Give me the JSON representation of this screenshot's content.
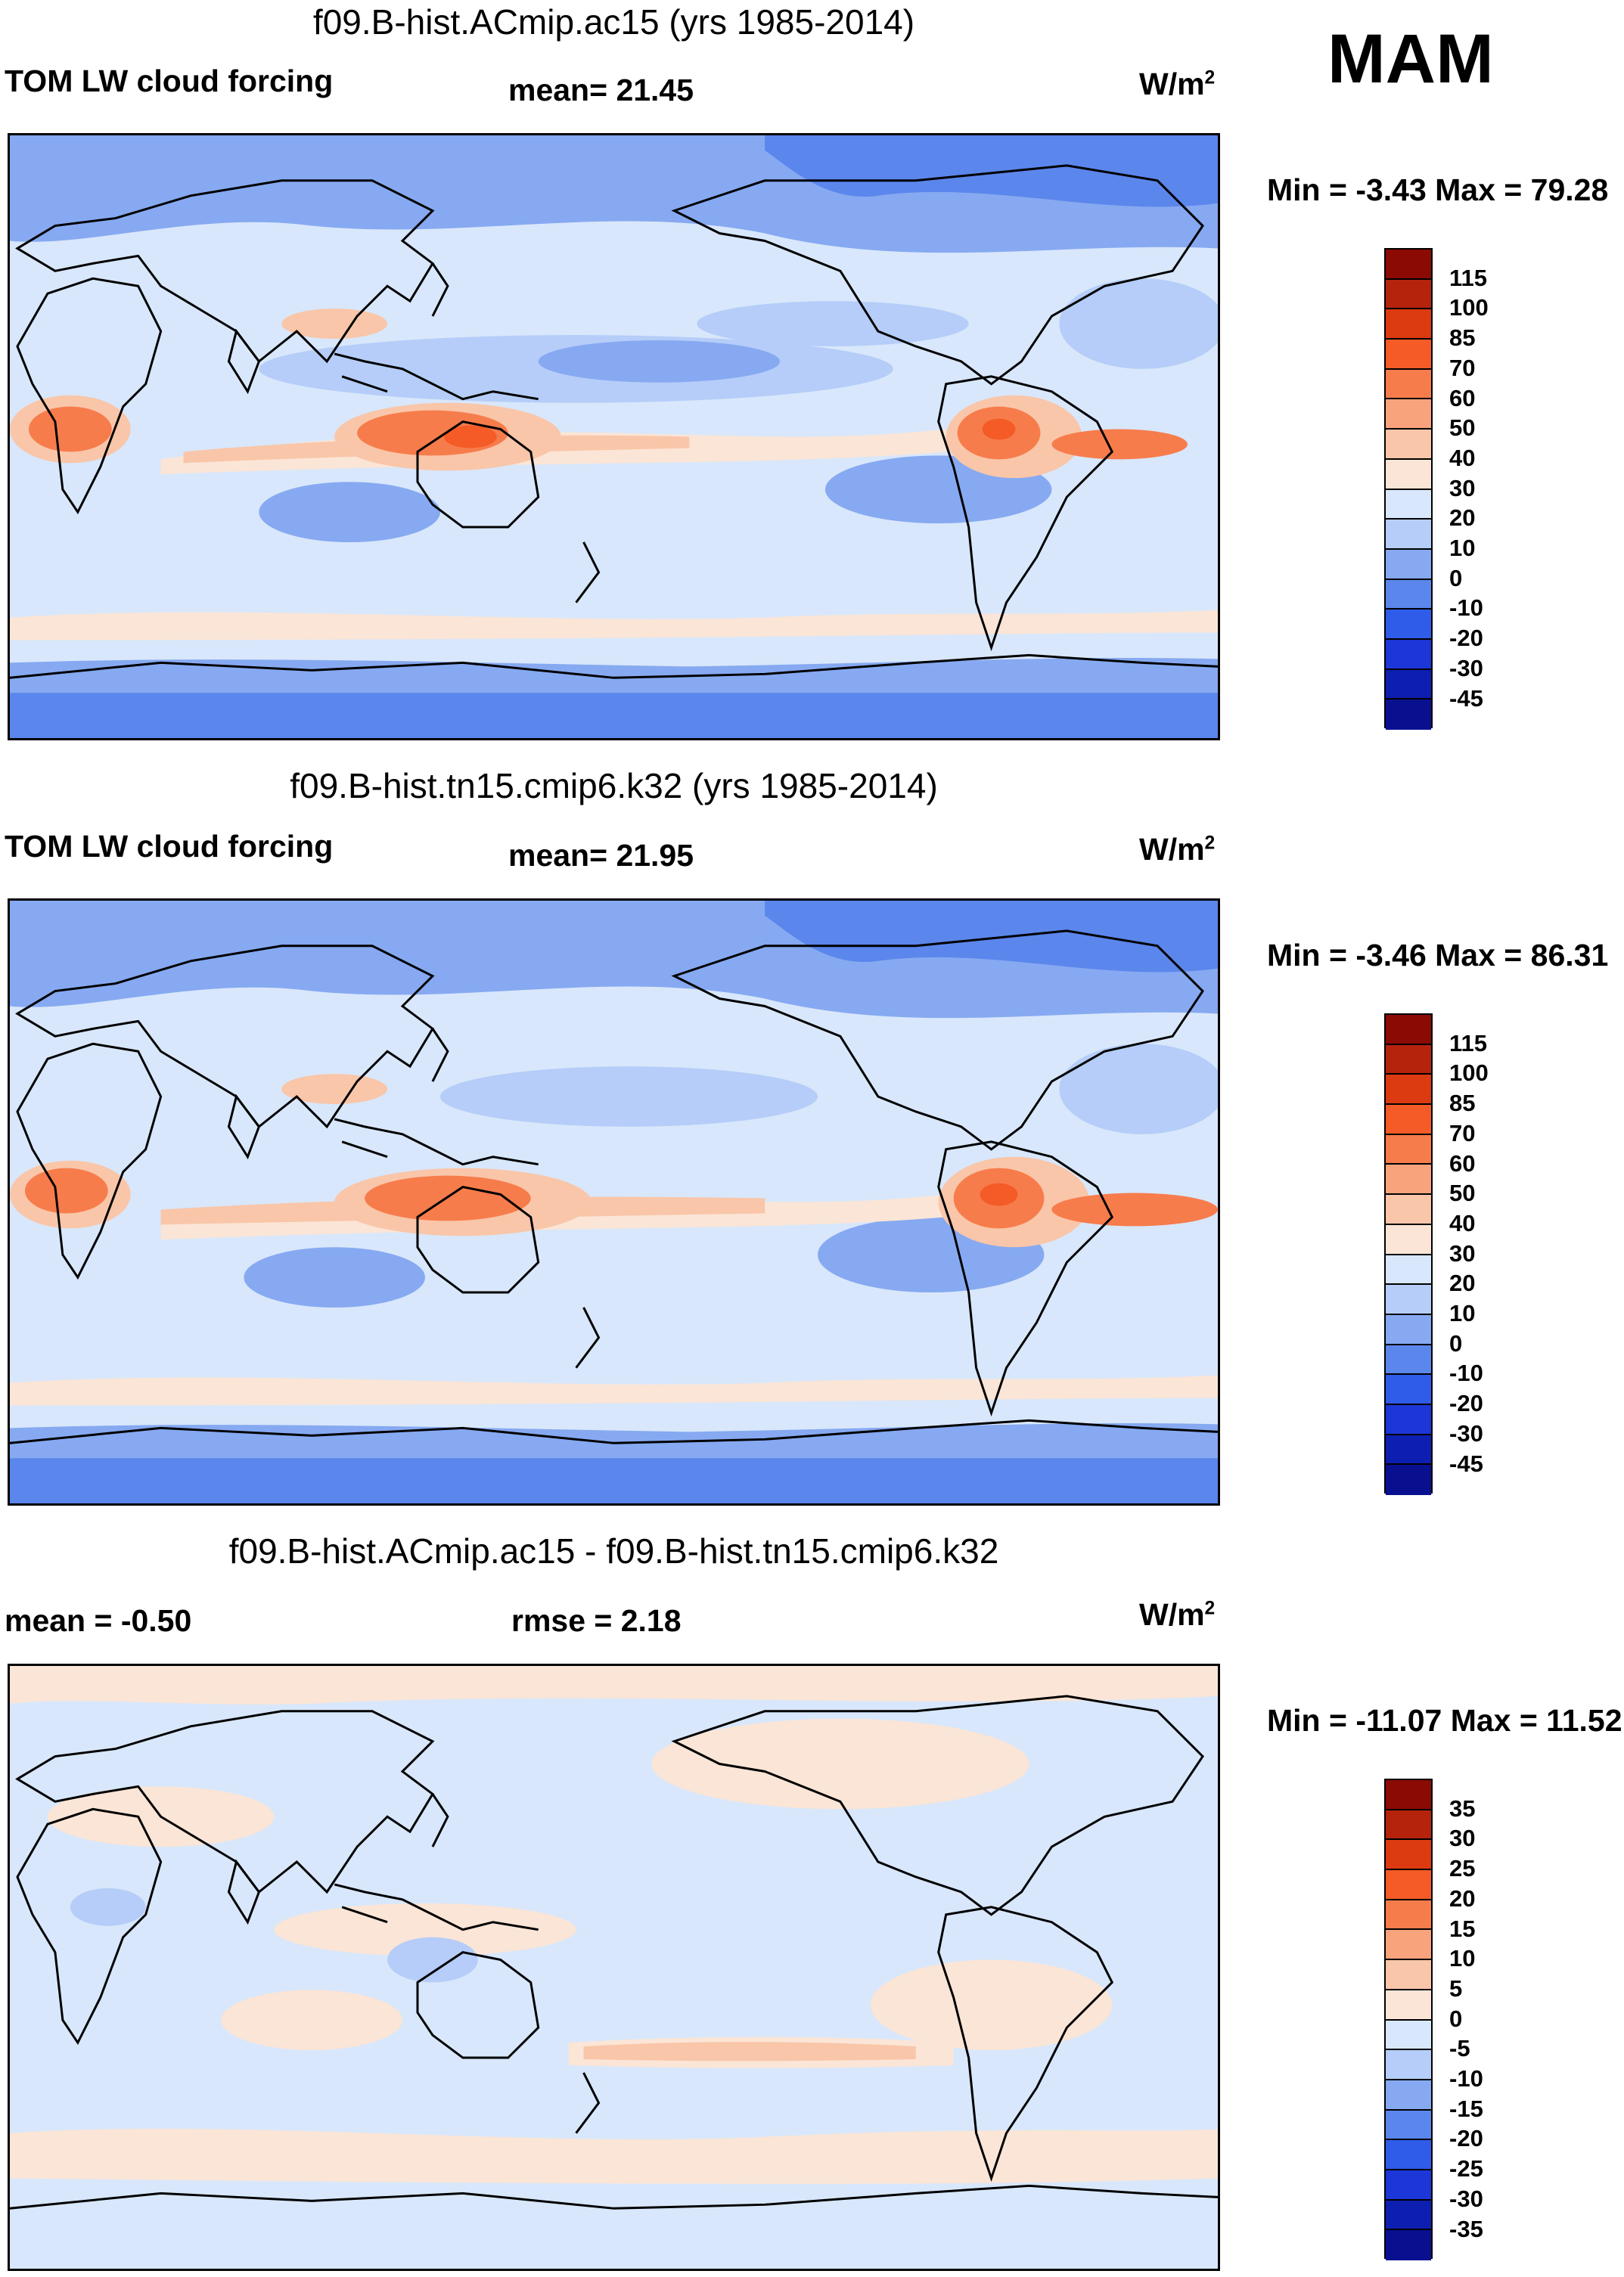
{
  "season": "MAM",
  "units_label": "W/m",
  "units_exp": "2",
  "panels": [
    {
      "title": "f09.B-hist.ACmip.ac15 (yrs 1985-2014)",
      "left_label": "TOM LW cloud forcing",
      "center_label": "mean=  21.45",
      "minmax": "Min =  -3.43 Max =  79.28"
    },
    {
      "title": "f09.B-hist.tn15.cmip6.k32 (yrs 1985-2014)",
      "left_label": "TOM LW cloud forcing",
      "center_label": "mean=  21.95",
      "minmax": "Min =  -3.46 Max =  86.31"
    },
    {
      "title": "f09.B-hist.ACmip.ac15 - f09.B-hist.tn15.cmip6.k32",
      "left_label": "mean =  -0.50",
      "center_label": "rmse =   2.18",
      "minmax": "Min = -11.07 Max =  11.52"
    }
  ],
  "colorbar_abs": {
    "labels": [
      "115",
      "100",
      "85",
      "70",
      "60",
      "50",
      "40",
      "30",
      "20",
      "10",
      "0",
      "-10",
      "-20",
      "-30",
      "-45"
    ],
    "colors": [
      "#8c0a04",
      "#b5230d",
      "#dc3a10",
      "#f45b26",
      "#f77c4c",
      "#f8a37c",
      "#f9c6a9",
      "#fbe5d6",
      "#d8e7fb",
      "#b5cdf8",
      "#86a9f1",
      "#5b86ec",
      "#2f5ce8",
      "#1c36d7",
      "#0d1fb0",
      "#081090"
    ]
  },
  "colorbar_diff": {
    "labels": [
      "35",
      "30",
      "25",
      "20",
      "15",
      "10",
      "5",
      "0",
      "-5",
      "-10",
      "-15",
      "-20",
      "-25",
      "-30",
      "-35"
    ],
    "colors": [
      "#8c0a04",
      "#b5230d",
      "#dc3a10",
      "#f45b26",
      "#f77c4c",
      "#f8a37c",
      "#f9c6a9",
      "#fbe5d6",
      "#d8e7fb",
      "#b5cdf8",
      "#86a9f1",
      "#5b86ec",
      "#2f5ce8",
      "#1c36d7",
      "#0d1fb0",
      "#081090"
    ]
  }
}
